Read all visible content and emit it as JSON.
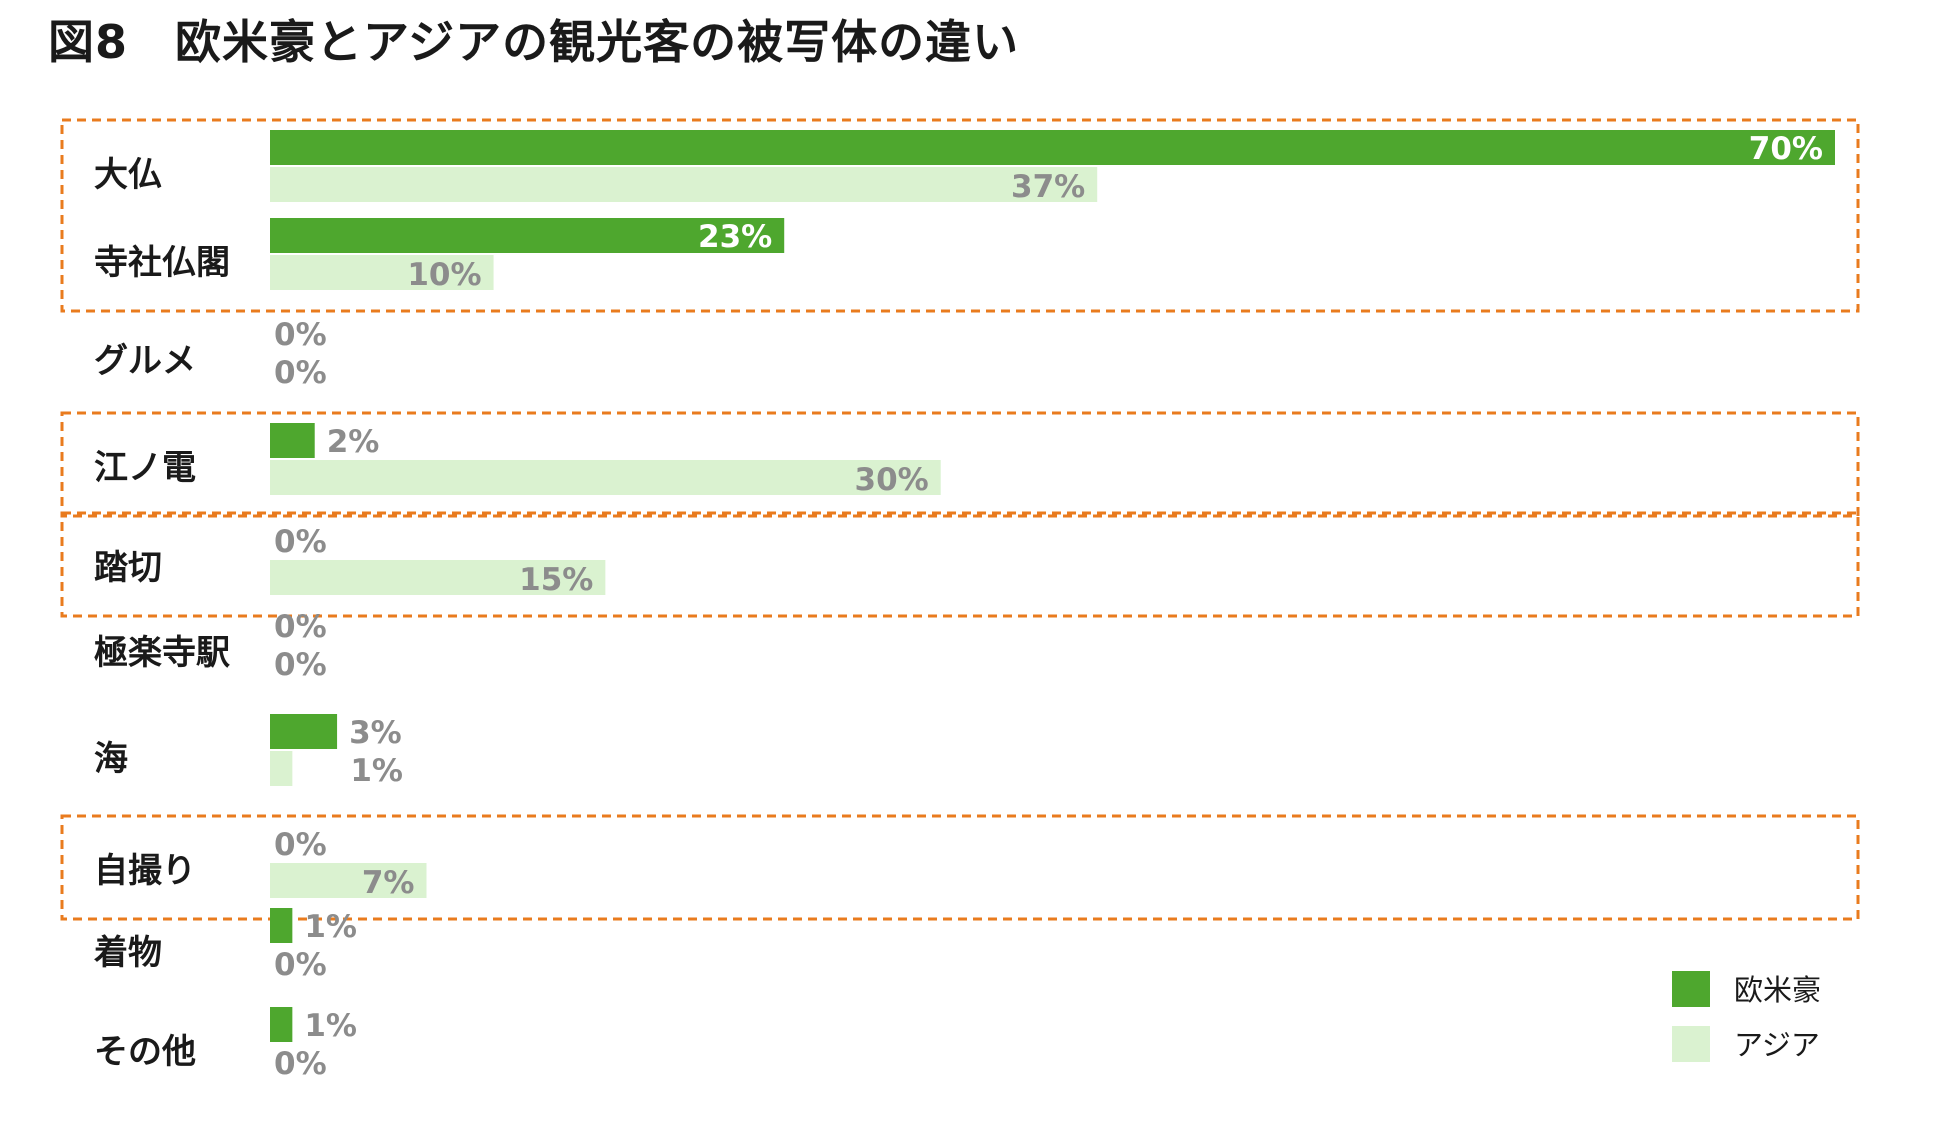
{
  "title": "図8　欧米豪とアジアの観光客の被写体の違い",
  "chart_data": {
    "type": "bar",
    "orientation": "horizontal",
    "title": "図8　欧米豪とアジアの観光客の被写体の違い",
    "xlabel": "",
    "ylabel": "",
    "xlim": [
      0,
      70
    ],
    "grid": false,
    "legend_position": "bottom-right",
    "categories": [
      "大仏",
      "寺社仏閣",
      "グルメ",
      "江ノ電",
      "踏切",
      "極楽寺駅",
      "海",
      "自撮り",
      "着物",
      "その他"
    ],
    "series": [
      {
        "name": "欧米豪",
        "color": "#4ea72e",
        "values": [
          70,
          23,
          0,
          2,
          0,
          0,
          3,
          0,
          1,
          1
        ],
        "labels": [
          "70%",
          "23%",
          "0%",
          "2%",
          "0%",
          "0%",
          "3%",
          "0%",
          "1%",
          "1%"
        ]
      },
      {
        "name": "アジア",
        "color": "#daf2d0",
        "values": [
          37,
          10,
          0,
          30,
          15,
          0,
          1,
          7,
          0,
          0
        ],
        "labels": [
          "37%",
          "10%",
          "0%",
          "30%",
          "15%",
          "0%",
          "1%",
          "7%",
          "0%",
          "0%"
        ]
      }
    ],
    "highlight_groups": [
      [
        "大仏",
        "寺社仏閣"
      ],
      [
        "江ノ電"
      ],
      [
        "踏切"
      ],
      [
        "自撮り"
      ]
    ],
    "highlight_color": "#e97b1e"
  }
}
